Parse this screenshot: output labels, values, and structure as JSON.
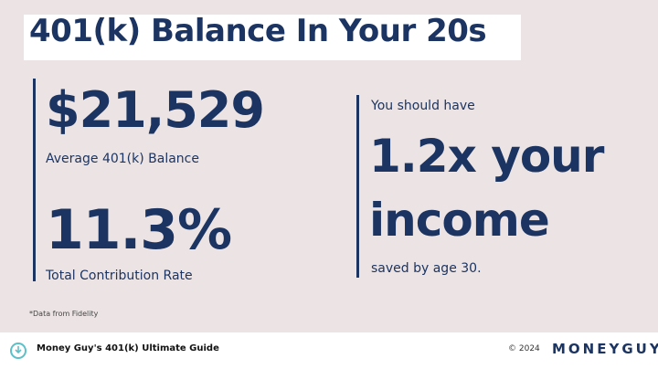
{
  "title": "401(k) Balance In Your 20s",
  "left": {
    "balance": "$21,529",
    "balance_label": "Average 401(k) Balance",
    "rate": "11.3%",
    "rate_label": "Total Contribution Rate"
  },
  "right": {
    "intro": "You should have",
    "line1": "1.2x your",
    "line2": "income",
    "outro": "saved by age 30."
  },
  "note": "*Data from Fidelity",
  "footer": {
    "guide": "Money Guy's 401(k) Ultimate Guide",
    "copyright": "© 2024",
    "brand": "MONEYGUY",
    "icon": "chat-download-icon"
  },
  "colors": {
    "navy": "#1c3461",
    "background": "#ece4e4",
    "accent": "#5bc0c8"
  }
}
